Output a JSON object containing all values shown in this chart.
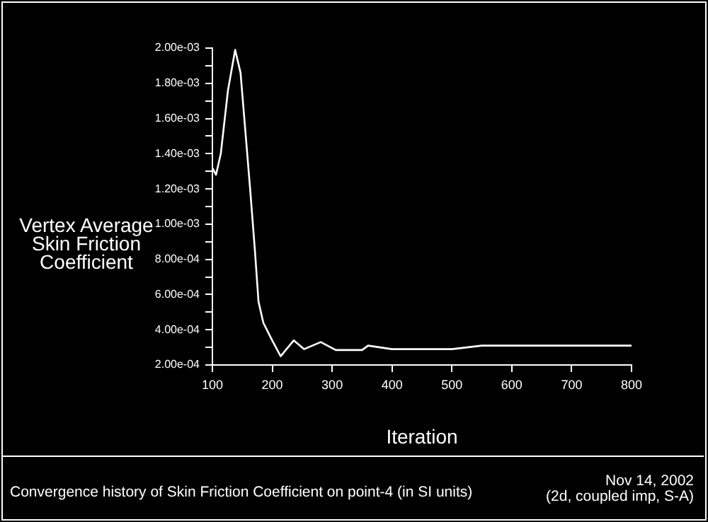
{
  "chart_data": {
    "type": "line",
    "title": "Convergence history of Skin Friction Coefficient on point-4 (in SI units)",
    "xlabel": "Iteration",
    "ylabel": "Vertex Average Skin Friction Coefficient",
    "annotations": [
      "Nov 14, 2002",
      "(2d, coupled imp, S-A)"
    ],
    "x": [
      100,
      106,
      114,
      126,
      138,
      147,
      163,
      171,
      177,
      185,
      199,
      214,
      236,
      253,
      281,
      306,
      350,
      360,
      400,
      450,
      500,
      550,
      600,
      700,
      800
    ],
    "series": [
      {
        "color": "#ffffff",
        "values": [
          0.00132,
          0.00128,
          0.0014,
          0.00176,
          0.00199,
          0.00186,
          0.0012,
          0.00085,
          0.00056,
          0.00044,
          0.000345,
          0.00025,
          0.00034,
          0.00029,
          0.00033,
          0.000285,
          0.000285,
          0.00031,
          0.00029,
          0.00029,
          0.00029,
          0.00031,
          0.00031,
          0.00031,
          0.00031
        ]
      }
    ],
    "xlim": [
      100,
      800
    ],
    "xticks": [
      100,
      200,
      300,
      400,
      500,
      600,
      700,
      800
    ],
    "ylim": [
      0.0002,
      0.002
    ],
    "yticks": [
      {
        "value": 0.0002,
        "label": "2.00e-04"
      },
      {
        "value": 0.0003,
        "label": null
      },
      {
        "value": 0.0004,
        "label": "4.00e-04"
      },
      {
        "value": 0.0005,
        "label": null
      },
      {
        "value": 0.0006,
        "label": "6.00e-04"
      },
      {
        "value": 0.0007,
        "label": null
      },
      {
        "value": 0.0008,
        "label": "8.00e-04"
      },
      {
        "value": 0.0009,
        "label": null
      },
      {
        "value": 0.001,
        "label": "1.00e-03"
      },
      {
        "value": 0.0011,
        "label": null
      },
      {
        "value": 0.0012,
        "label": "1.20e-03"
      },
      {
        "value": 0.0013,
        "label": null
      },
      {
        "value": 0.0014,
        "label": "1.40e-03"
      },
      {
        "value": 0.0015,
        "label": null
      },
      {
        "value": 0.0016,
        "label": "1.60e-03"
      },
      {
        "value": 0.0017,
        "label": null
      },
      {
        "value": 0.0018,
        "label": "1.80e-03"
      },
      {
        "value": 0.0019,
        "label": null
      },
      {
        "value": 0.002,
        "label": "2.00e-03"
      }
    ],
    "grid": false,
    "legend": false,
    "marker": "none",
    "line_style": "solid"
  }
}
